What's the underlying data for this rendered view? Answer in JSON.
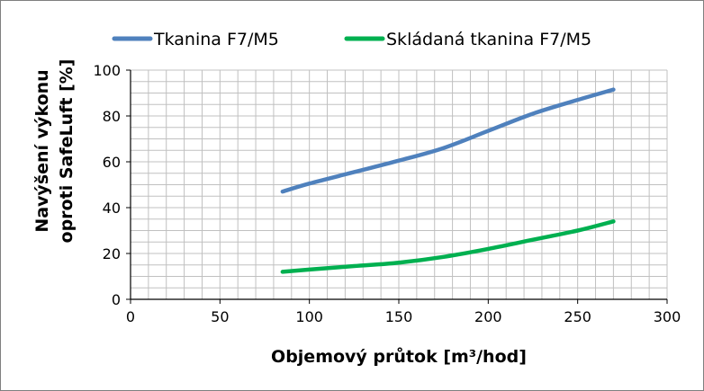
{
  "chart_data": {
    "type": "line",
    "xlabel": "Objemový průtok [m³/hod]",
    "ylabel_line1": "Navýšení výkonu",
    "ylabel_line2": "oproti SafeLuft [%]",
    "xlim": [
      0,
      300
    ],
    "ylim": [
      0,
      100
    ],
    "x_ticks": [
      0,
      50,
      100,
      150,
      200,
      250,
      300
    ],
    "y_ticks": [
      0,
      20,
      40,
      60,
      80,
      100
    ],
    "x_minor_step": 10,
    "y_minor_step": 5,
    "grid": true,
    "legend_position": "top",
    "series": [
      {
        "name": "Tkanina F7/M5",
        "color": "#4f81bd",
        "x": [
          85,
          100,
          125,
          150,
          175,
          200,
          225,
          250,
          270
        ],
        "y": [
          47,
          50.5,
          55.5,
          60.5,
          66,
          73.5,
          81,
          87,
          91.5
        ]
      },
      {
        "name": "Skládaná tkanina F7/M5",
        "color": "#00b050",
        "x": [
          85,
          100,
          125,
          150,
          175,
          200,
          225,
          250,
          270
        ],
        "y": [
          12,
          13,
          14.5,
          16,
          18.5,
          22,
          26,
          30,
          34
        ]
      }
    ]
  }
}
